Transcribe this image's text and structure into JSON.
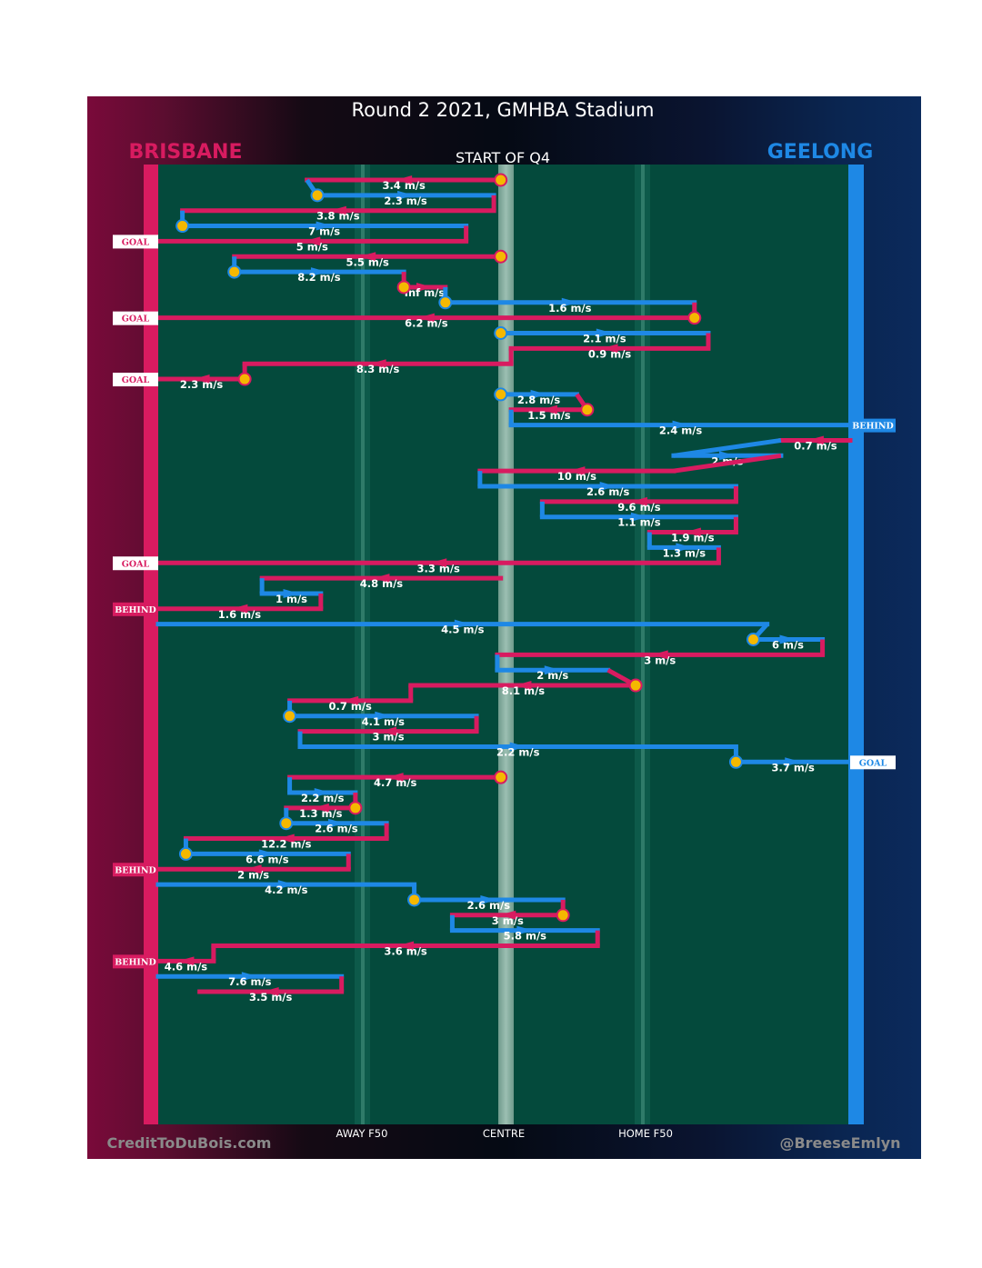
{
  "chart_data": {
    "type": "line",
    "title": "Round 2 2021, GMHBA Stadium",
    "subtitle": "START OF Q4",
    "home_team": "BRISBANE",
    "away_team": "GEELONG",
    "x_axis_labels": [
      "AWAY F50",
      "CENTRE",
      "HOME F50"
    ],
    "footer_left": "CreditToDuBois.com",
    "footer_right": "@BreeseEmlyn",
    "colors": {
      "brisbane": "#d81b60",
      "geelong": "#1e88e5",
      "pitch": "#044a3c",
      "marker": "#f5b800"
    },
    "x_range": [
      0,
      100
    ],
    "chains": [
      {
        "team": "brisbane",
        "x0": 49.5,
        "x1": 21.5,
        "speed": "3.4 m/s",
        "start_marker": true
      },
      {
        "team": "geelong",
        "x0": 23,
        "x1": 48.5,
        "speed": "2.3 m/s",
        "start_marker": true
      },
      {
        "team": "brisbane",
        "x0": 48.5,
        "x1": 3.5,
        "speed": "3.8 m/s"
      },
      {
        "team": "geelong",
        "x0": 3.5,
        "x1": 44.5,
        "speed": "7 m/s",
        "start_marker": true
      },
      {
        "team": "brisbane",
        "x0": 44.5,
        "x1": 0,
        "speed": "5 m/s",
        "outcome": "GOAL"
      },
      {
        "team": "brisbane",
        "x0": 49.5,
        "x1": 11,
        "speed": "5.5 m/s",
        "start_marker": true
      },
      {
        "team": "geelong",
        "x0": 11,
        "x1": 35.5,
        "speed": "8.2 m/s",
        "start_marker": true
      },
      {
        "team": "brisbane",
        "x0": 35.5,
        "x1": 41.5,
        "speed": "Inf m/s",
        "start_marker": true
      },
      {
        "team": "geelong",
        "x0": 41.5,
        "x1": 77.5,
        "speed": "1.6 m/s",
        "start_marker": true
      },
      {
        "team": "brisbane",
        "x0": 77.5,
        "x1": 0,
        "speed": "6.2 m/s",
        "start_marker": true,
        "outcome": "GOAL"
      },
      {
        "team": "geelong",
        "x0": 49.5,
        "x1": 79.5,
        "speed": "2.1 m/s",
        "start_marker": true
      },
      {
        "team": "brisbane",
        "x0": 79.5,
        "x1": 51,
        "speed": "0.9 m/s"
      },
      {
        "team": "brisbane",
        "x0": 51,
        "x1": 12.5,
        "speed": "8.3 m/s"
      },
      {
        "team": "brisbane",
        "x0": 12.5,
        "x1": 0,
        "speed": "2.3 m/s",
        "start_marker": true,
        "outcome": "GOAL"
      },
      {
        "team": "geelong",
        "x0": 49.5,
        "x1": 60.5,
        "speed": "2.8 m/s",
        "start_marker": true
      },
      {
        "team": "brisbane",
        "x0": 62,
        "x1": 51,
        "speed": "1.5 m/s",
        "start_marker": true
      },
      {
        "team": "geelong",
        "x0": 51,
        "x1": 100,
        "speed": "2.4 m/s",
        "outcome": "BEHIND"
      },
      {
        "team": "brisbane",
        "x0": 100,
        "x1": 90,
        "speed": "0.7 m/s"
      },
      {
        "team": "geelong",
        "x0": 74.5,
        "x1": 90,
        "speed": "2 m/s"
      },
      {
        "team": "brisbane",
        "x0": 74.5,
        "x1": 46.5,
        "speed": "10 m/s"
      },
      {
        "team": "geelong",
        "x0": 46.5,
        "x1": 83.5,
        "speed": "2.6 m/s"
      },
      {
        "team": "brisbane",
        "x0": 83.5,
        "x1": 55.5,
        "speed": "9.6 m/s"
      },
      {
        "team": "geelong",
        "x0": 55.5,
        "x1": 83.5,
        "speed": "1.1 m/s"
      },
      {
        "team": "brisbane",
        "x0": 83.5,
        "x1": 71,
        "speed": "1.9 m/s"
      },
      {
        "team": "geelong",
        "x0": 71,
        "x1": 81,
        "speed": "1.3 m/s"
      },
      {
        "team": "brisbane",
        "x0": 81,
        "x1": 0,
        "speed": "3.3 m/s",
        "outcome": "GOAL"
      },
      {
        "team": "brisbane",
        "x0": 49.5,
        "x1": 15,
        "speed": "4.8 m/s"
      },
      {
        "team": "geelong",
        "x0": 15,
        "x1": 23.5,
        "speed": "1 m/s"
      },
      {
        "team": "brisbane",
        "x0": 23.5,
        "x1": 0,
        "speed": "1.6 m/s",
        "outcome": "BEHIND"
      },
      {
        "team": "geelong",
        "x0": 0,
        "x1": 88,
        "speed": "4.5 m/s"
      },
      {
        "team": "geelong",
        "x0": 86,
        "x1": 96,
        "speed": "6 m/s",
        "start_marker": true
      },
      {
        "team": "brisbane",
        "x0": 96,
        "x1": 49,
        "speed": "3 m/s"
      },
      {
        "team": "geelong",
        "x0": 49,
        "x1": 65,
        "speed": "2 m/s"
      },
      {
        "team": "brisbane",
        "x0": 69,
        "x1": 36.5,
        "speed": "8.1 m/s",
        "start_marker": true
      },
      {
        "team": "brisbane",
        "x0": 36.5,
        "x1": 19,
        "speed": "0.7 m/s"
      },
      {
        "team": "geelong",
        "x0": 19,
        "x1": 46,
        "speed": "4.1 m/s",
        "start_marker": true
      },
      {
        "team": "brisbane",
        "x0": 46,
        "x1": 20.5,
        "speed": "3 m/s"
      },
      {
        "team": "geelong",
        "x0": 20.5,
        "x1": 83.5,
        "speed": "2.2 m/s"
      },
      {
        "team": "geelong",
        "x0": 83.5,
        "x1": 100,
        "speed": "3.7 m/s",
        "start_marker": true,
        "outcome": "GOAL"
      },
      {
        "team": "brisbane",
        "x0": 49.5,
        "x1": 19,
        "speed": "4.7 m/s",
        "start_marker": true
      },
      {
        "team": "geelong",
        "x0": 19,
        "x1": 28.5,
        "speed": "2.2 m/s"
      },
      {
        "team": "brisbane",
        "x0": 28.5,
        "x1": 18.5,
        "speed": "1.3 m/s",
        "start_marker": true
      },
      {
        "team": "geelong",
        "x0": 18.5,
        "x1": 33,
        "speed": "2.6 m/s",
        "start_marker": true
      },
      {
        "team": "brisbane",
        "x0": 33,
        "x1": 4,
        "speed": "12.2 m/s"
      },
      {
        "team": "geelong",
        "x0": 4,
        "x1": 27.5,
        "speed": "6.6 m/s",
        "start_marker": true
      },
      {
        "team": "brisbane",
        "x0": 27.5,
        "x1": 0,
        "speed": "2 m/s",
        "outcome": "BEHIND"
      },
      {
        "team": "geelong",
        "x0": 0,
        "x1": 37,
        "speed": "4.2 m/s"
      },
      {
        "team": "geelong",
        "x0": 37,
        "x1": 58.5,
        "speed": "2.6 m/s",
        "start_marker": true
      },
      {
        "team": "brisbane",
        "x0": 58.5,
        "x1": 42.5,
        "speed": "3 m/s",
        "start_marker": true
      },
      {
        "team": "geelong",
        "x0": 42.5,
        "x1": 63.5,
        "speed": "5.8 m/s"
      },
      {
        "team": "brisbane",
        "x0": 63.5,
        "x1": 8,
        "speed": "3.6 m/s"
      },
      {
        "team": "brisbane",
        "x0": 8,
        "x1": 0,
        "speed": "4.6 m/s",
        "outcome": "BEHIND"
      },
      {
        "team": "geelong",
        "x0": 0,
        "x1": 26.5,
        "speed": "7.6 m/s"
      },
      {
        "team": "brisbane",
        "x0": 26.5,
        "x1": 6,
        "speed": "3.5 m/s"
      }
    ]
  }
}
